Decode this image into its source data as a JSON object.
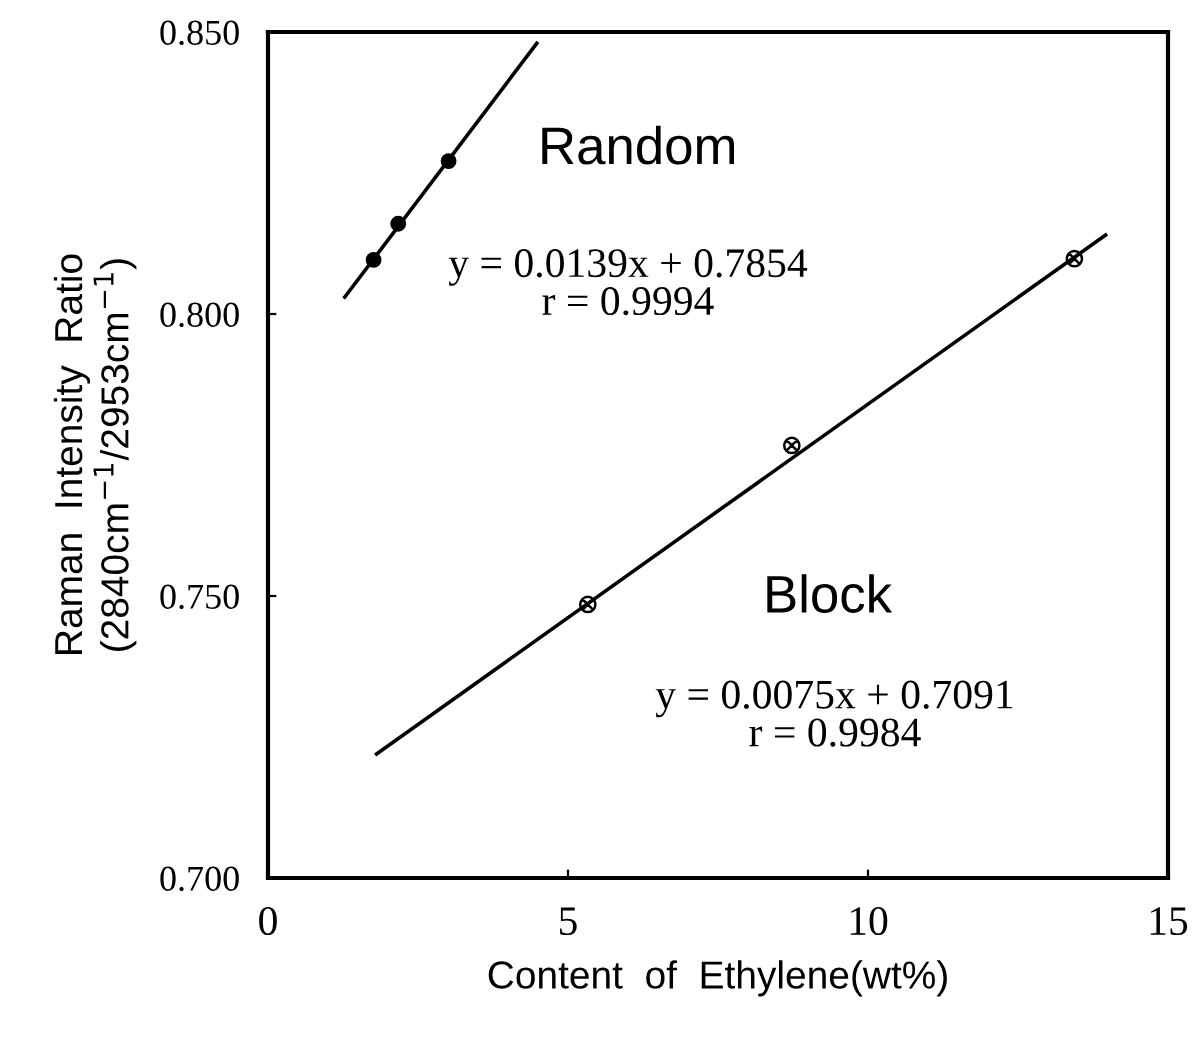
{
  "chart_data": {
    "type": "scatter",
    "xlabel": "Content  of  Ethylene(wt%)",
    "ylabel": "Raman  Intensity  Ratio\n(2840cm$^{−1}$/2953cm$^{−1}$)",
    "xlim": [
      0,
      15
    ],
    "ylim": [
      0.7,
      0.85
    ],
    "xticks": [
      0,
      5,
      10,
      15
    ],
    "yticks": [
      {
        "value": 0.7,
        "label": "0.700"
      },
      {
        "value": 0.75,
        "label": "0.750"
      },
      {
        "value": 0.8,
        "label": "0.800"
      },
      {
        "value": 0.85,
        "label": "0.850"
      }
    ],
    "grid": false,
    "series": [
      {
        "color": "#000000",
        "marker": "circle",
        "x": [
          1.76,
          2.17,
          3.01
        ],
        "values": [
          0.8096,
          0.816,
          0.8271
        ]
      },
      {
        "type": "line",
        "color": "#000000",
        "marker": "none",
        "line_style": "solid",
        "x": [
          1.28,
          4.48
        ],
        "values": [
          0.803,
          0.848
        ]
      },
      {
        "color": "#000000",
        "marker": "cross",
        "x": [
          5.33,
          8.73,
          13.44
        ],
        "values": [
          0.7485,
          0.7767,
          0.8098
        ]
      },
      {
        "type": "line",
        "color": "#000000",
        "marker": "none",
        "line_style": "solid",
        "x": [
          1.81,
          13.96
        ],
        "values": [
          0.722,
          0.814
        ]
      }
    ],
    "annotations": [
      "Random",
      "y = 0.0139x + 0.7854\nr = 0.9994",
      "Block",
      "y = 0.0075x + 0.7091\nr = 0.9984"
    ]
  }
}
